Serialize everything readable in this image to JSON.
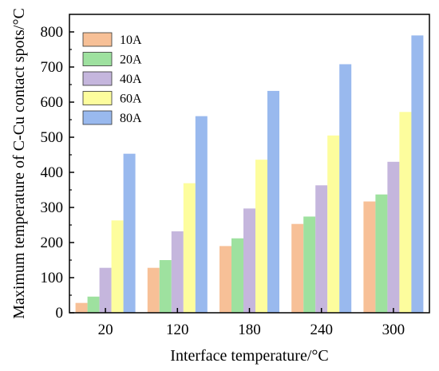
{
  "chart_data": {
    "type": "bar",
    "xlabel": "Interface temperature/°C",
    "ylabel": "Maximum temperature of C-Cu contact spots/°C",
    "categories": [
      "20",
      "120",
      "180",
      "240",
      "300"
    ],
    "ylim": [
      0,
      850
    ],
    "yticks": [
      "0",
      "100",
      "200",
      "300",
      "400",
      "500",
      "600",
      "700",
      "800"
    ],
    "grid": false,
    "legend_position": "top-left",
    "series": [
      {
        "name": "10A",
        "color": "#f7c097",
        "values": [
          28,
          128,
          190,
          253,
          317
        ]
      },
      {
        "name": "20A",
        "color": "#9ee19f",
        "values": [
          46,
          150,
          212,
          274,
          337
        ]
      },
      {
        "name": "40A",
        "color": "#c5b6dd",
        "values": [
          128,
          232,
          297,
          363,
          430
        ]
      },
      {
        "name": "60A",
        "color": "#fdfd9d",
        "values": [
          263,
          369,
          436,
          505,
          572
        ]
      },
      {
        "name": "80A",
        "color": "#99b9ee",
        "values": [
          453,
          560,
          632,
          708,
          790
        ]
      }
    ]
  }
}
